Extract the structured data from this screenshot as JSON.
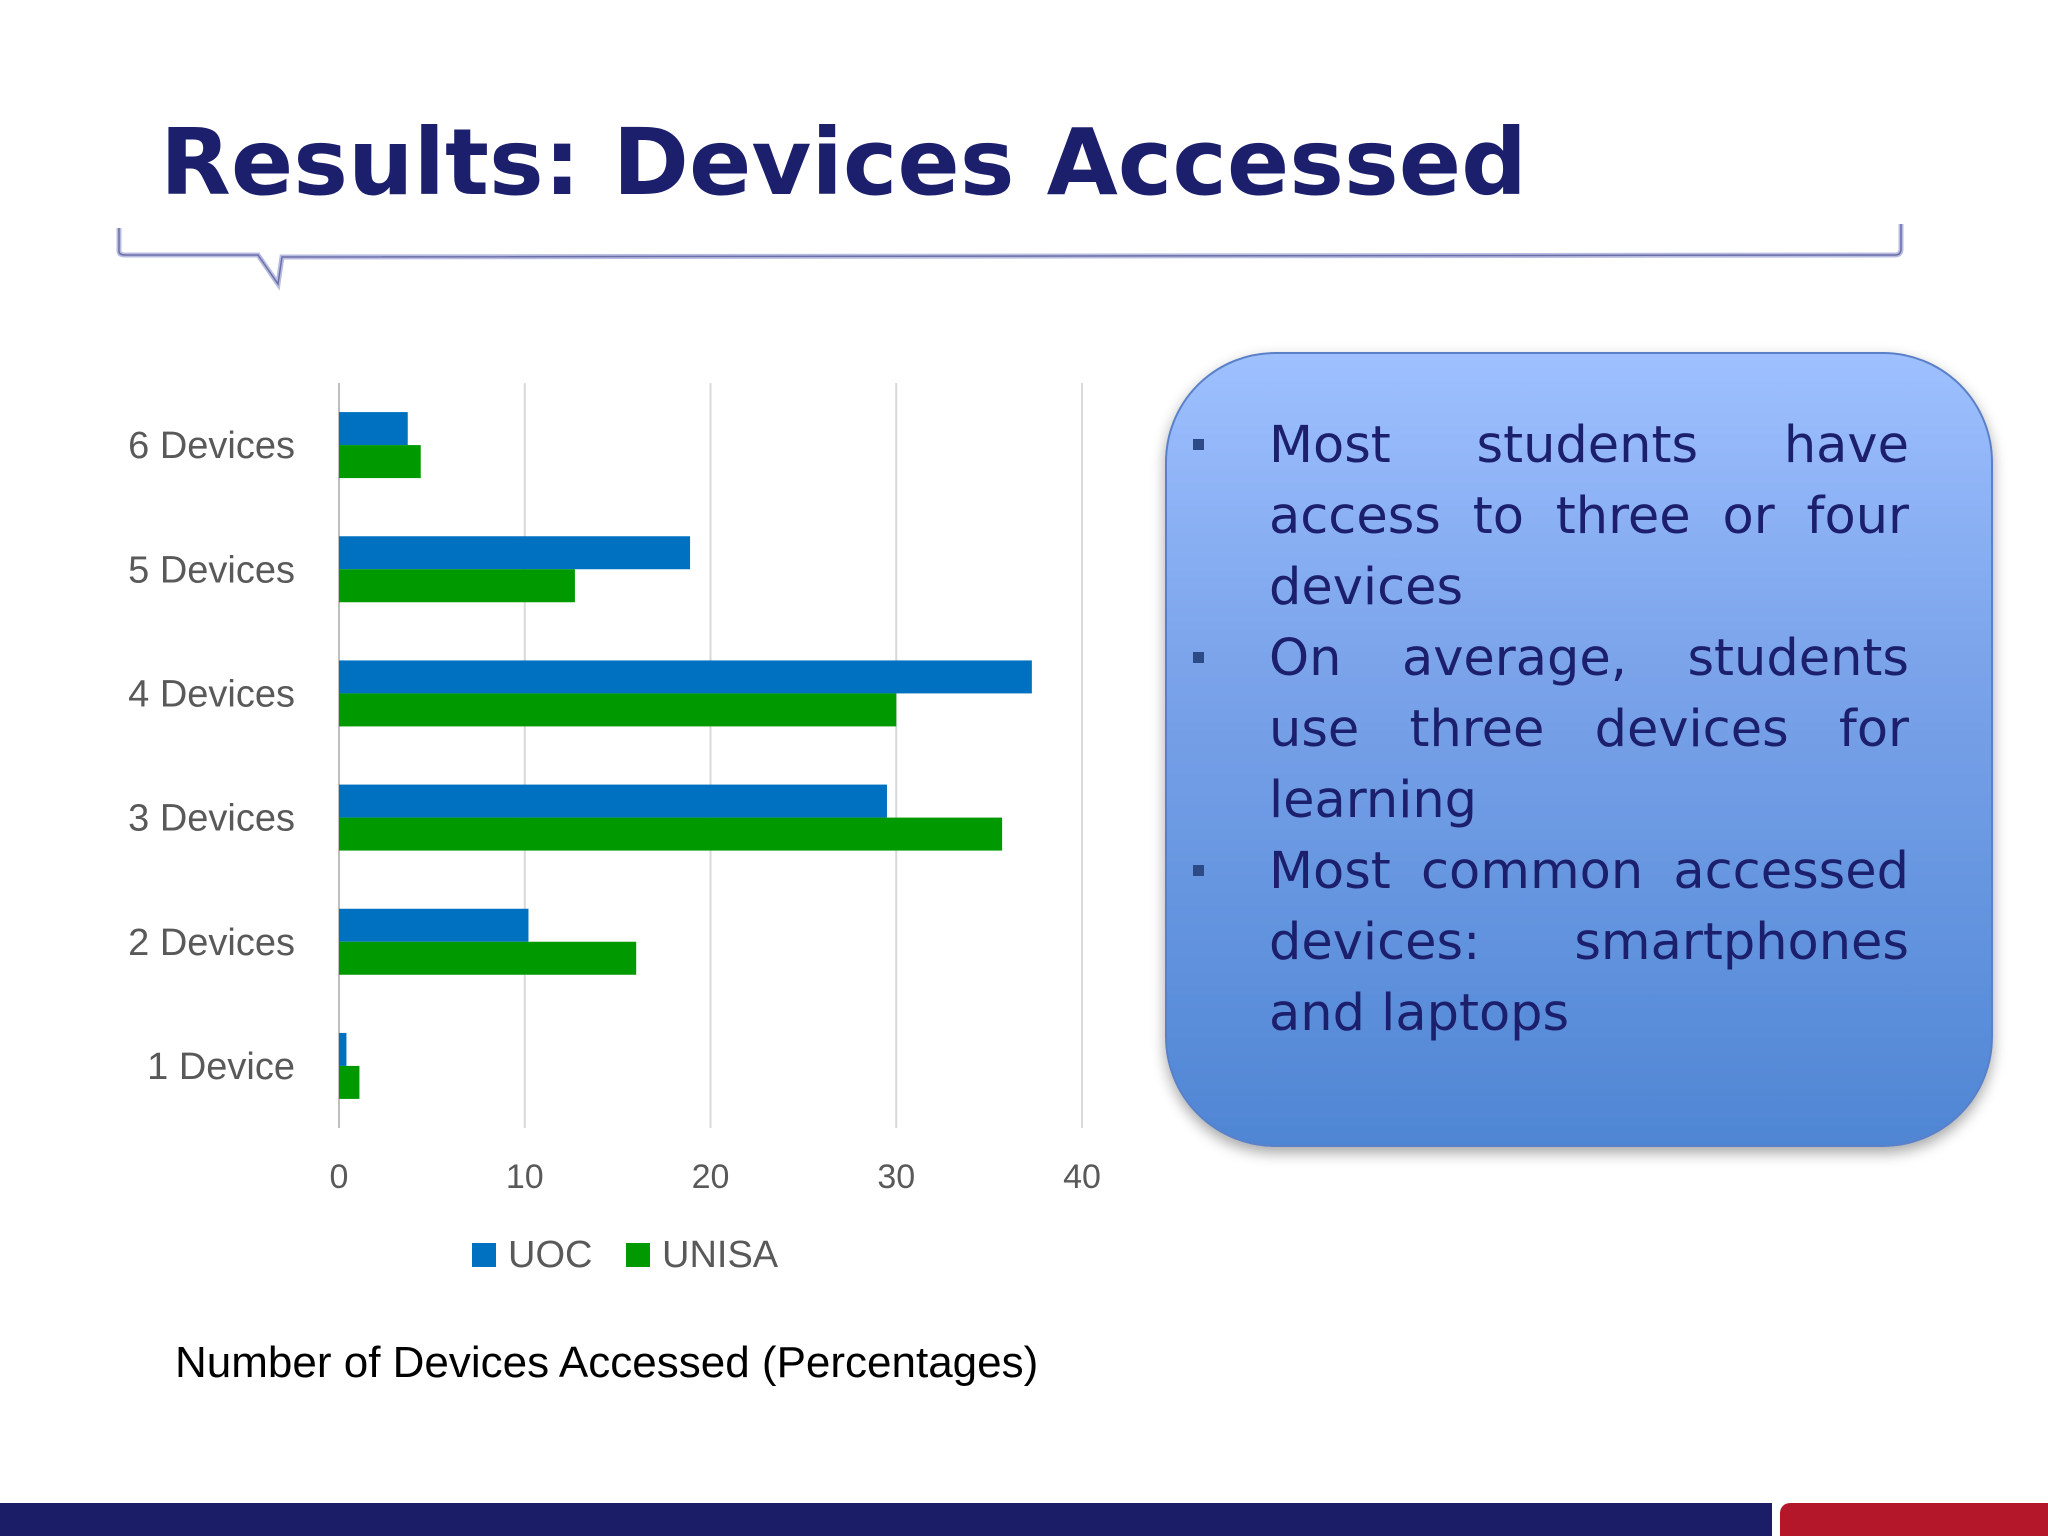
{
  "slide": {
    "title": "Results: Devices Accessed"
  },
  "colors": {
    "title": "#1c1f6b",
    "uoc": "#0070c0",
    "unisa": "#009900",
    "footer": "#1b1d66",
    "footer_accent": "#b4172a"
  },
  "chart_data": {
    "type": "bar",
    "orientation": "horizontal",
    "categories": [
      "1 Device",
      "2 Devices",
      "3 Devices",
      "4 Devices",
      "5 Devices",
      "6 Devices"
    ],
    "series": [
      {
        "name": "UOC",
        "values": [
          0.4,
          10.2,
          29.5,
          37.3,
          18.9,
          3.7
        ]
      },
      {
        "name": "UNISA",
        "values": [
          1.1,
          16.0,
          35.7,
          30.0,
          12.7,
          4.4
        ]
      }
    ],
    "xticks": [
      "0",
      "10",
      "20",
      "30",
      "40"
    ],
    "xlim": [
      0,
      40
    ],
    "grid": true,
    "legend_position": "bottom",
    "caption": "Number of Devices Accessed (Percentages)"
  },
  "callout": {
    "bullets": [
      "Most students have access to three or four devices",
      "On average, students use three devices for learning",
      "Most common accessed devices: smartphones and laptops"
    ]
  }
}
